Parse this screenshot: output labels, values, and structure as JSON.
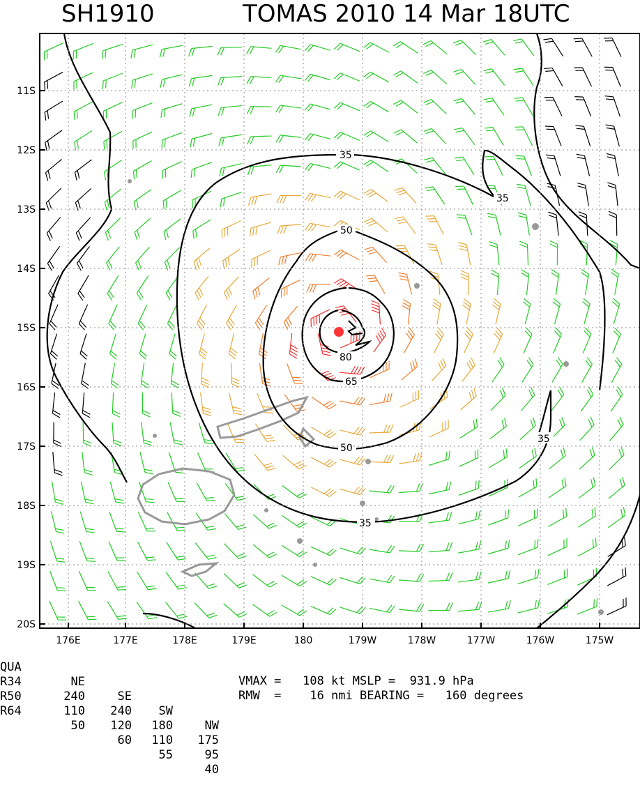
{
  "title": {
    "storm_id": "SH1910",
    "storm_info": "TOMAS 2010 14 Mar 18UTC"
  },
  "axes": {
    "lat_labels": [
      "11S",
      "12S",
      "13S",
      "14S",
      "15S",
      "16S",
      "17S",
      "18S",
      "19S",
      "20S"
    ],
    "lon_labels": [
      "176E",
      "177E",
      "178E",
      "179E",
      "180",
      "179W",
      "178W",
      "177W",
      "176W",
      "175W"
    ]
  },
  "contours": {
    "labels": [
      "35",
      "35",
      "50",
      "80",
      "65",
      "35",
      "50",
      "35"
    ]
  },
  "colors": {
    "wind_lt34": "#000000",
    "wind_34_50": "#22cc22",
    "wind_50_64": "#e6a93a",
    "wind_64_80": "#f07e2e",
    "wind_gt80": "#ee3333",
    "land": "#999999",
    "center": "#ff3333"
  },
  "icons": {
    "storm_center": "storm-center-dot",
    "coast": "island-outline"
  },
  "wind_radii": {
    "header": [
      "QUA",
      "NE",
      "SE",
      "SW",
      "NW"
    ],
    "rows": [
      {
        "label": "R34",
        "values": [
          "240",
          "240",
          "180",
          "175"
        ]
      },
      {
        "label": "R50",
        "values": [
          "110",
          "120",
          "110",
          "95"
        ]
      },
      {
        "label": "R64",
        "values": [
          "50",
          "60",
          "55",
          "40"
        ]
      }
    ]
  },
  "stats": {
    "vmax_line": "VMAX =   108 kt MSLP =  931.9 hPa",
    "rmw_line": "RMW  =    16 nmi BEARING =   160 degrees"
  }
}
